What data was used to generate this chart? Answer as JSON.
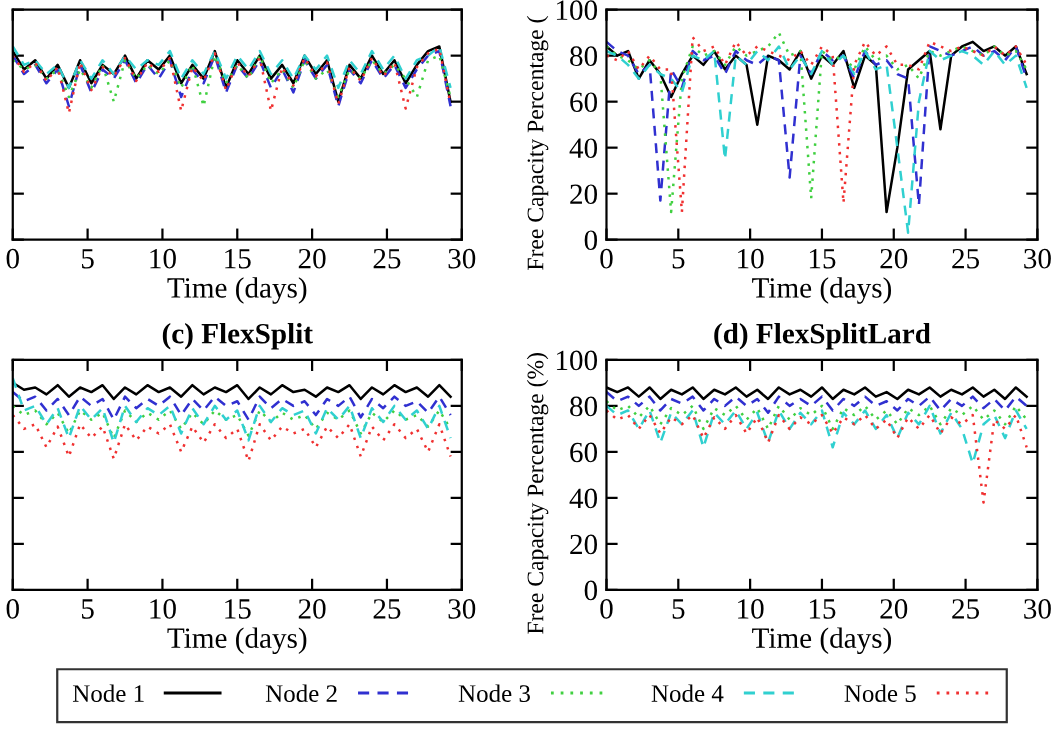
{
  "chart_data": [
    {
      "type": "line",
      "xlabel": "Time (days)",
      "xlim": [
        0,
        30
      ],
      "xticks": [
        0,
        5,
        10,
        15,
        20,
        25,
        30
      ],
      "ylim": [
        0,
        100
      ],
      "yticks": [
        0,
        20,
        40,
        60,
        80,
        100
      ],
      "tick_labels": "x",
      "legend": "bottom",
      "x": [
        0,
        0.75,
        1.5,
        2.25,
        3,
        3.75,
        4.5,
        5.25,
        6,
        6.75,
        7.5,
        8.25,
        9,
        9.75,
        10.5,
        11.25,
        12,
        12.75,
        13.5,
        14.25,
        15,
        15.75,
        16.5,
        17.25,
        18,
        18.75,
        19.5,
        20.25,
        21,
        21.75,
        22.5,
        23.25,
        24,
        24.75,
        25.5,
        26.25,
        27,
        27.75,
        28.5,
        29.25
      ],
      "series": [
        {
          "name": "Node 1",
          "color": "#000000",
          "line_style": "solid",
          "values": [
            82,
            74,
            78,
            70,
            76,
            66,
            78,
            68,
            76,
            72,
            80,
            70,
            78,
            74,
            80,
            68,
            76,
            70,
            82,
            66,
            78,
            72,
            80,
            70,
            76,
            68,
            80,
            72,
            78,
            60,
            76,
            70,
            80,
            72,
            78,
            68,
            76,
            82,
            84,
            60
          ]
        },
        {
          "name": "Node 2",
          "color": "#3030d0",
          "line_style": "dashed",
          "values": [
            80,
            72,
            76,
            68,
            74,
            58,
            76,
            64,
            74,
            70,
            78,
            68,
            76,
            70,
            78,
            62,
            74,
            68,
            80,
            64,
            76,
            70,
            78,
            66,
            74,
            64,
            78,
            70,
            76,
            58,
            74,
            68,
            78,
            70,
            76,
            66,
            74,
            80,
            82,
            58
          ]
        },
        {
          "name": "Node 3",
          "color": "#40d040",
          "line_style": "dotted",
          "values": [
            78,
            74,
            76,
            70,
            74,
            62,
            74,
            66,
            76,
            60,
            78,
            70,
            76,
            72,
            78,
            66,
            76,
            58,
            80,
            68,
            76,
            70,
            80,
            68,
            74,
            66,
            78,
            70,
            74,
            62,
            74,
            70,
            78,
            72,
            76,
            70,
            62,
            78,
            80,
            62
          ]
        },
        {
          "name": "Node 4",
          "color": "#30d0d0",
          "line_style": "dashed",
          "values": [
            84,
            76,
            78,
            72,
            76,
            66,
            78,
            70,
            78,
            72,
            80,
            74,
            78,
            76,
            82,
            70,
            78,
            72,
            82,
            70,
            80,
            74,
            82,
            72,
            78,
            70,
            80,
            74,
            80,
            66,
            78,
            72,
            82,
            74,
            80,
            70,
            78,
            80,
            84,
            66
          ]
        },
        {
          "name": "Node 5",
          "color": "#f03030",
          "line_style": "dotted",
          "values": [
            80,
            73,
            77,
            69,
            75,
            55,
            77,
            65,
            75,
            71,
            79,
            69,
            77,
            73,
            79,
            56,
            75,
            69,
            81,
            65,
            77,
            71,
            79,
            56,
            75,
            67,
            79,
            71,
            77,
            59,
            75,
            69,
            79,
            71,
            77,
            57,
            75,
            81,
            83,
            59
          ]
        }
      ]
    },
    {
      "type": "line",
      "xlabel": "Time (days)",
      "ylabel": "Free Capacity Percentage (",
      "xlim": [
        0,
        30
      ],
      "xticks": [
        0,
        5,
        10,
        15,
        20,
        25,
        30
      ],
      "ylim": [
        0,
        100
      ],
      "yticks": [
        0,
        20,
        40,
        60,
        80,
        100
      ],
      "x": [
        0,
        0.75,
        1.5,
        2.25,
        3,
        3.75,
        4.5,
        5.25,
        6,
        6.75,
        7.5,
        8.25,
        9,
        9.75,
        10.5,
        11.25,
        12,
        12.75,
        13.5,
        14.25,
        15,
        15.75,
        16.5,
        17.25,
        18,
        18.75,
        19.5,
        20.25,
        21,
        21.75,
        22.5,
        23.25,
        24,
        24.75,
        25.5,
        26.25,
        27,
        27.75,
        28.5,
        29.25
      ],
      "series": [
        {
          "color": "#000000",
          "line_style": "solid",
          "values": [
            84,
            80,
            82,
            70,
            78,
            72,
            62,
            72,
            80,
            76,
            82,
            74,
            80,
            76,
            50,
            80,
            78,
            74,
            82,
            70,
            80,
            76,
            82,
            66,
            80,
            76,
            12,
            40,
            74,
            78,
            82,
            48,
            80,
            84,
            86,
            82,
            84,
            80,
            84,
            72
          ]
        },
        {
          "color": "#3030d0",
          "line_style": "dashed",
          "values": [
            86,
            82,
            80,
            72,
            76,
            17,
            74,
            66,
            82,
            78,
            80,
            72,
            82,
            78,
            76,
            80,
            78,
            27,
            80,
            72,
            82,
            78,
            80,
            70,
            82,
            76,
            78,
            72,
            70,
            15,
            84,
            82,
            80,
            82,
            84,
            80,
            82,
            78,
            84,
            70
          ]
        },
        {
          "color": "#40d040",
          "line_style": "dotted",
          "values": [
            84,
            80,
            78,
            74,
            78,
            72,
            12,
            70,
            84,
            80,
            82,
            76,
            84,
            80,
            82,
            84,
            90,
            80,
            82,
            18,
            82,
            78,
            80,
            74,
            84,
            78,
            80,
            74,
            76,
            70,
            82,
            80,
            82,
            84,
            82,
            80,
            84,
            80,
            82,
            74
          ]
        },
        {
          "color": "#30d0d0",
          "line_style": "dashed",
          "values": [
            82,
            80,
            76,
            70,
            76,
            72,
            70,
            64,
            80,
            78,
            82,
            35,
            80,
            76,
            82,
            78,
            84,
            74,
            80,
            72,
            82,
            76,
            80,
            72,
            82,
            74,
            76,
            40,
            3,
            60,
            82,
            78,
            80,
            82,
            80,
            76,
            82,
            76,
            80,
            66
          ]
        },
        {
          "color": "#f03030",
          "line_style": "dotted",
          "values": [
            80,
            78,
            82,
            74,
            80,
            74,
            74,
            12,
            88,
            82,
            84,
            76,
            86,
            80,
            84,
            82,
            80,
            78,
            82,
            76,
            84,
            80,
            16,
            76,
            86,
            80,
            84,
            76,
            76,
            74,
            86,
            84,
            82,
            84,
            82,
            80,
            84,
            80,
            84,
            76
          ]
        }
      ]
    },
    {
      "type": "line",
      "title": "(c) FlexSplit",
      "xlabel": "Time (days)",
      "xlim": [
        0,
        30
      ],
      "xticks": [
        0,
        5,
        10,
        15,
        20,
        25,
        30
      ],
      "ylim": [
        0,
        100
      ],
      "yticks": [
        0,
        20,
        40,
        60,
        80,
        100
      ],
      "tick_labels": "x",
      "x": [
        0,
        0.75,
        1.5,
        2.25,
        3,
        3.75,
        4.5,
        5.25,
        6,
        6.75,
        7.5,
        8.25,
        9,
        9.75,
        10.5,
        11.25,
        12,
        12.75,
        13.5,
        14.25,
        15,
        15.75,
        16.5,
        17.25,
        18,
        18.75,
        19.5,
        20.25,
        21,
        21.75,
        22.5,
        23.25,
        24,
        24.75,
        25.5,
        26.25,
        27,
        27.75,
        28.5,
        29.25
      ],
      "series": [
        {
          "color": "#000000",
          "line_style": "solid",
          "values": [
            90,
            87,
            88,
            85,
            89,
            84,
            88,
            86,
            89,
            83,
            88,
            85,
            89,
            86,
            88,
            84,
            89,
            85,
            88,
            86,
            89,
            83,
            88,
            85,
            89,
            86,
            87,
            84,
            88,
            86,
            89,
            83,
            88,
            85,
            89,
            86,
            88,
            84,
            89,
            84
          ]
        },
        {
          "color": "#3030d0",
          "line_style": "dashed",
          "values": [
            86,
            82,
            84,
            78,
            83,
            76,
            84,
            80,
            83,
            74,
            84,
            79,
            83,
            80,
            84,
            76,
            83,
            78,
            84,
            80,
            82,
            74,
            84,
            79,
            83,
            80,
            82,
            76,
            83,
            80,
            84,
            75,
            83,
            79,
            84,
            80,
            82,
            77,
            84,
            76
          ]
        },
        {
          "color": "#40d040",
          "line_style": "dotted",
          "values": [
            80,
            76,
            78,
            72,
            77,
            68,
            78,
            74,
            77,
            66,
            78,
            73,
            77,
            74,
            78,
            70,
            77,
            72,
            78,
            74,
            76,
            67,
            78,
            73,
            77,
            74,
            76,
            70,
            77,
            74,
            78,
            68,
            77,
            73,
            78,
            74,
            76,
            71,
            78,
            70
          ]
        },
        {
          "color": "#30d0d0",
          "line_style": "dashed",
          "values": [
            92,
            78,
            80,
            72,
            79,
            66,
            80,
            74,
            79,
            64,
            80,
            73,
            79,
            76,
            80,
            68,
            79,
            72,
            80,
            74,
            78,
            65,
            80,
            73,
            79,
            76,
            78,
            68,
            79,
            74,
            80,
            66,
            79,
            73,
            80,
            74,
            78,
            70,
            80,
            66
          ]
        },
        {
          "color": "#f03030",
          "line_style": "dotted",
          "values": [
            76,
            70,
            72,
            62,
            71,
            58,
            72,
            66,
            71,
            57,
            72,
            65,
            71,
            68,
            72,
            60,
            71,
            64,
            72,
            66,
            70,
            56,
            72,
            65,
            71,
            68,
            70,
            62,
            71,
            66,
            72,
            58,
            71,
            65,
            72,
            66,
            70,
            60,
            72,
            58
          ]
        }
      ]
    },
    {
      "type": "line",
      "title": "(d) FlexSplitLard",
      "xlabel": "Time (days)",
      "ylabel": "Free Capacity Percentage (%)",
      "xlim": [
        0,
        30
      ],
      "xticks": [
        0,
        5,
        10,
        15,
        20,
        25,
        30
      ],
      "ylim": [
        0,
        100
      ],
      "yticks": [
        0,
        20,
        40,
        60,
        80,
        100
      ],
      "x": [
        0,
        0.75,
        1.5,
        2.25,
        3,
        3.75,
        4.5,
        5.25,
        6,
        6.75,
        7.5,
        8.25,
        9,
        9.75,
        10.5,
        11.25,
        12,
        12.75,
        13.5,
        14.25,
        15,
        15.75,
        16.5,
        17.25,
        18,
        18.75,
        19.5,
        20.25,
        21,
        21.75,
        22.5,
        23.25,
        24,
        24.75,
        25.5,
        26.25,
        27,
        27.75,
        28.5,
        29.25
      ],
      "series": [
        {
          "color": "#000000",
          "line_style": "solid",
          "values": [
            88,
            86,
            88,
            84,
            88,
            83,
            87,
            85,
            88,
            83,
            87,
            85,
            88,
            84,
            87,
            83,
            88,
            85,
            87,
            84,
            88,
            83,
            87,
            85,
            88,
            84,
            86,
            83,
            87,
            85,
            88,
            84,
            87,
            85,
            88,
            84,
            87,
            83,
            88,
            84
          ]
        },
        {
          "color": "#3030d0",
          "line_style": "dashed",
          "values": [
            86,
            82,
            84,
            80,
            84,
            78,
            83,
            81,
            84,
            78,
            83,
            80,
            84,
            80,
            83,
            77,
            84,
            80,
            83,
            80,
            84,
            78,
            83,
            80,
            84,
            80,
            82,
            78,
            83,
            80,
            84,
            78,
            83,
            80,
            84,
            79,
            83,
            78,
            84,
            80
          ]
        },
        {
          "color": "#40d040",
          "line_style": "dotted",
          "values": [
            82,
            78,
            80,
            75,
            80,
            72,
            79,
            76,
            80,
            70,
            79,
            76,
            80,
            74,
            79,
            70,
            80,
            74,
            79,
            76,
            80,
            70,
            79,
            76,
            80,
            74,
            78,
            72,
            79,
            76,
            80,
            72,
            79,
            76,
            80,
            74,
            78,
            72,
            80,
            74
          ]
        },
        {
          "color": "#30d0d0",
          "line_style": "dashed",
          "values": [
            80,
            76,
            78,
            70,
            78,
            64,
            77,
            72,
            78,
            62,
            77,
            72,
            78,
            70,
            77,
            64,
            78,
            70,
            77,
            72,
            78,
            62,
            77,
            72,
            78,
            70,
            76,
            66,
            77,
            72,
            80,
            68,
            77,
            70,
            55,
            72,
            76,
            66,
            78,
            70
          ]
        },
        {
          "color": "#f03030",
          "line_style": "dotted",
          "values": [
            78,
            74,
            76,
            70,
            76,
            68,
            75,
            72,
            76,
            66,
            75,
            70,
            76,
            68,
            75,
            64,
            76,
            70,
            75,
            72,
            76,
            68,
            75,
            72,
            76,
            70,
            74,
            66,
            75,
            70,
            76,
            68,
            75,
            72,
            76,
            38,
            74,
            70,
            76,
            62
          ]
        }
      ]
    }
  ]
}
